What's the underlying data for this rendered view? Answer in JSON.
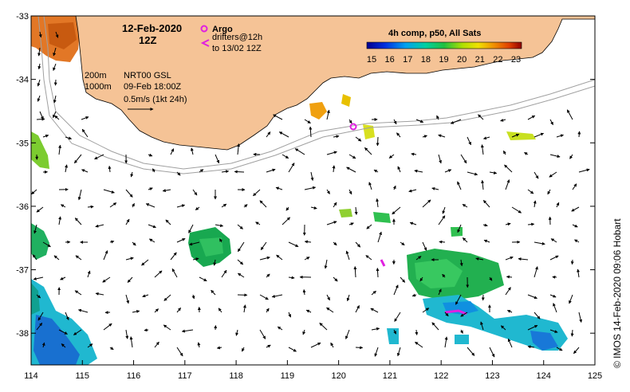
{
  "title": {
    "date": "12-Feb-2020",
    "hour": "12Z"
  },
  "legend": {
    "argo_label": "Argo",
    "drifters_label": "drifters@12h",
    "drifters_to": "to 13/02 12Z",
    "argo_color": "#e020e0",
    "drifter_color": "#e020e0"
  },
  "depth_contours": {
    "label_200": "200m",
    "label_1000": "1000m"
  },
  "current_info": {
    "model": "NRT00 GSL",
    "timestamp": "09-Feb 18:00Z",
    "scale": "0.5m/s (1kt 24h)"
  },
  "colorbar": {
    "title": "4h comp, p50, All Sats",
    "ticks": [
      "15",
      "16",
      "17",
      "18",
      "19",
      "20",
      "21",
      "22",
      "23"
    ]
  },
  "credit": "© IMOS 14-Feb-2020 09:06 Hobart",
  "colors": {
    "land": "#f5c396",
    "contour": "#999999"
  },
  "axes": {
    "x_ticks": [
      "114",
      "115",
      "116",
      "117",
      "118",
      "119",
      "120",
      "121",
      "122",
      "123",
      "124",
      "125"
    ],
    "y_ticks": [
      "-33",
      "-34",
      "-35",
      "-36",
      "-37",
      "-38"
    ]
  },
  "chart_data": {
    "type": "map",
    "lon_range": [
      114,
      125
    ],
    "lat_range": [
      -38.5,
      -33
    ],
    "sst_range_c": [
      15,
      23
    ]
  }
}
